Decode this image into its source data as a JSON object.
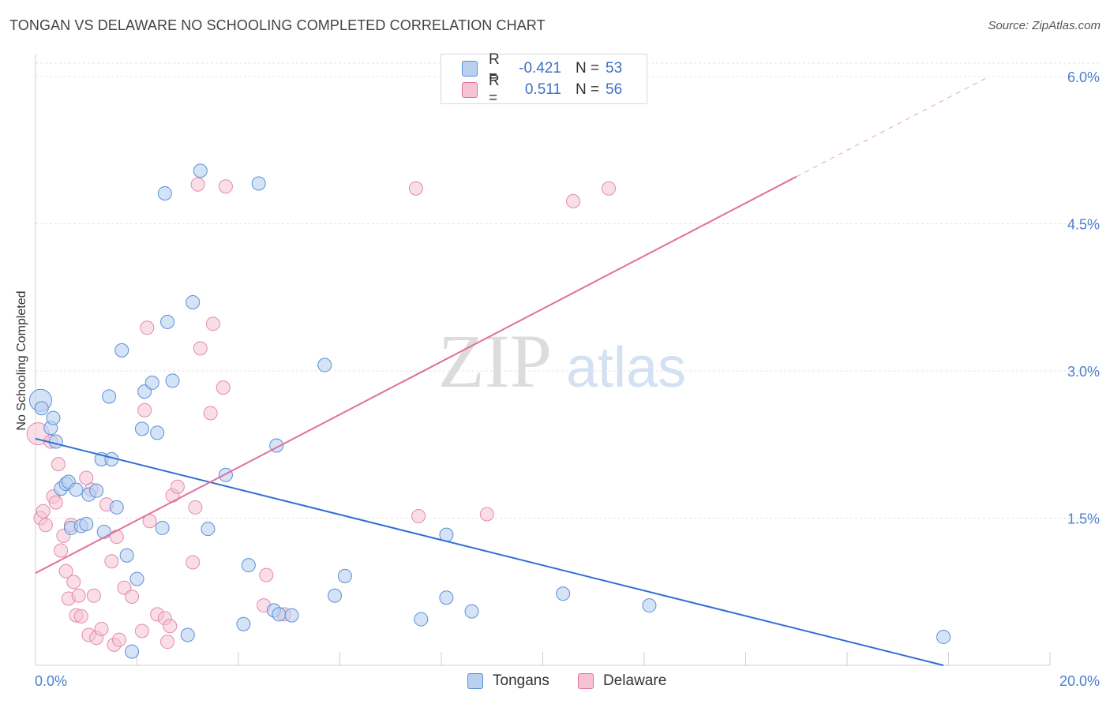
{
  "title": "TONGAN VS DELAWARE NO SCHOOLING COMPLETED CORRELATION CHART",
  "source": "Source: ZipAtlas.com",
  "colors": {
    "blue": "#5b8fd6",
    "blue_fill": "#b9d1f1",
    "pink": "#e0709a",
    "pink_fill": "#f6c3d3",
    "axis_text": "#4a7fd0"
  },
  "legend_top": {
    "rows": [
      {
        "label": "R =",
        "r": "-0.421",
        "n_label": "N =",
        "n": "53"
      },
      {
        "label": "R =",
        "r": "0.511",
        "n_label": "N =",
        "n": "56"
      }
    ]
  },
  "legend_bottom": {
    "tongans": "Tongans",
    "delaware": "Delaware"
  },
  "chart_data": {
    "type": "scatter",
    "title": "TONGAN VS DELAWARE NO SCHOOLING COMPLETED CORRELATION CHART",
    "xlabel": "",
    "ylabel": "No Schooling Completed",
    "xlim": [
      0,
      20
    ],
    "ylim": [
      0,
      6.2
    ],
    "x_tick_labels": [
      "0.0%",
      "20.0%"
    ],
    "y_ticks": [
      1.5,
      3.0,
      4.5,
      6.0
    ],
    "y_tick_labels": [
      "1.5%",
      "3.0%",
      "4.5%",
      "6.0%"
    ],
    "grid": true,
    "legend_position": "top-center",
    "series": [
      {
        "name": "Tongans",
        "color": "#5b8fd6",
        "trend": {
          "x": [
            0.0,
            17.9
          ],
          "y": [
            2.31,
            0.0
          ]
        },
        "points": [
          [
            0.1,
            2.7
          ],
          [
            0.12,
            2.62
          ],
          [
            0.3,
            2.42
          ],
          [
            0.35,
            2.52
          ],
          [
            0.4,
            2.28
          ],
          [
            0.5,
            1.8
          ],
          [
            0.6,
            1.85
          ],
          [
            0.65,
            1.87
          ],
          [
            0.7,
            1.4
          ],
          [
            0.8,
            1.79
          ],
          [
            0.9,
            1.42
          ],
          [
            1.0,
            1.44
          ],
          [
            1.05,
            1.74
          ],
          [
            1.2,
            1.78
          ],
          [
            1.3,
            2.1
          ],
          [
            1.35,
            1.36
          ],
          [
            1.45,
            2.74
          ],
          [
            1.5,
            2.1
          ],
          [
            1.6,
            1.61
          ],
          [
            1.7,
            3.21
          ],
          [
            1.8,
            1.12
          ],
          [
            1.9,
            0.14
          ],
          [
            2.0,
            0.88
          ],
          [
            2.1,
            2.41
          ],
          [
            2.15,
            2.79
          ],
          [
            2.3,
            2.88
          ],
          [
            2.4,
            2.37
          ],
          [
            2.5,
            1.4
          ],
          [
            2.55,
            4.81
          ],
          [
            2.6,
            3.5
          ],
          [
            2.7,
            2.9
          ],
          [
            3.0,
            0.31
          ],
          [
            3.1,
            3.7
          ],
          [
            3.25,
            5.04
          ],
          [
            3.4,
            1.39
          ],
          [
            3.75,
            1.94
          ],
          [
            4.1,
            0.42
          ],
          [
            4.2,
            1.02
          ],
          [
            4.4,
            4.91
          ],
          [
            4.7,
            0.56
          ],
          [
            4.8,
            0.52
          ],
          [
            4.75,
            2.24
          ],
          [
            5.05,
            0.51
          ],
          [
            5.7,
            3.06
          ],
          [
            5.9,
            0.71
          ],
          [
            6.1,
            0.91
          ],
          [
            7.6,
            0.47
          ],
          [
            8.1,
            0.69
          ],
          [
            8.1,
            1.33
          ],
          [
            8.6,
            0.55
          ],
          [
            10.4,
            0.73
          ],
          [
            12.1,
            0.61
          ],
          [
            17.9,
            0.29
          ]
        ]
      },
      {
        "name": "Delaware",
        "color": "#e0709a",
        "trend": {
          "x": [
            0.0,
            15.0
          ],
          "y": [
            0.94,
            4.98
          ]
        },
        "trend_extension": {
          "x": [
            15.0,
            18.8
          ],
          "y": [
            4.98,
            6.0
          ]
        },
        "points": [
          [
            0.05,
            2.36
          ],
          [
            0.1,
            1.5
          ],
          [
            0.15,
            1.57
          ],
          [
            0.2,
            1.43
          ],
          [
            0.3,
            2.28
          ],
          [
            0.35,
            1.72
          ],
          [
            0.4,
            1.66
          ],
          [
            0.45,
            2.05
          ],
          [
            0.5,
            1.17
          ],
          [
            0.55,
            1.32
          ],
          [
            0.6,
            0.96
          ],
          [
            0.65,
            0.68
          ],
          [
            0.7,
            1.43
          ],
          [
            0.75,
            0.85
          ],
          [
            0.8,
            0.51
          ],
          [
            0.85,
            0.71
          ],
          [
            0.9,
            0.5
          ],
          [
            1.0,
            1.91
          ],
          [
            1.05,
            0.31
          ],
          [
            1.1,
            1.79
          ],
          [
            1.15,
            0.71
          ],
          [
            1.2,
            0.28
          ],
          [
            1.3,
            0.37
          ],
          [
            1.4,
            1.64
          ],
          [
            1.5,
            1.06
          ],
          [
            1.55,
            0.21
          ],
          [
            1.6,
            1.31
          ],
          [
            1.65,
            0.26
          ],
          [
            1.75,
            0.79
          ],
          [
            1.9,
            0.7
          ],
          [
            2.1,
            0.35
          ],
          [
            2.15,
            2.6
          ],
          [
            2.2,
            3.44
          ],
          [
            2.25,
            1.47
          ],
          [
            2.4,
            0.52
          ],
          [
            2.55,
            0.48
          ],
          [
            2.6,
            0.24
          ],
          [
            2.65,
            0.4
          ],
          [
            2.7,
            1.73
          ],
          [
            2.8,
            1.82
          ],
          [
            3.1,
            1.05
          ],
          [
            3.15,
            1.61
          ],
          [
            3.2,
            4.9
          ],
          [
            3.25,
            3.23
          ],
          [
            3.45,
            2.57
          ],
          [
            3.5,
            3.48
          ],
          [
            3.7,
            2.83
          ],
          [
            3.75,
            4.88
          ],
          [
            4.5,
            0.61
          ],
          [
            4.55,
            0.92
          ],
          [
            4.9,
            0.52
          ],
          [
            7.5,
            4.86
          ],
          [
            7.55,
            1.52
          ],
          [
            8.9,
            1.54
          ],
          [
            10.6,
            4.73
          ],
          [
            11.3,
            4.86
          ]
        ]
      }
    ]
  }
}
